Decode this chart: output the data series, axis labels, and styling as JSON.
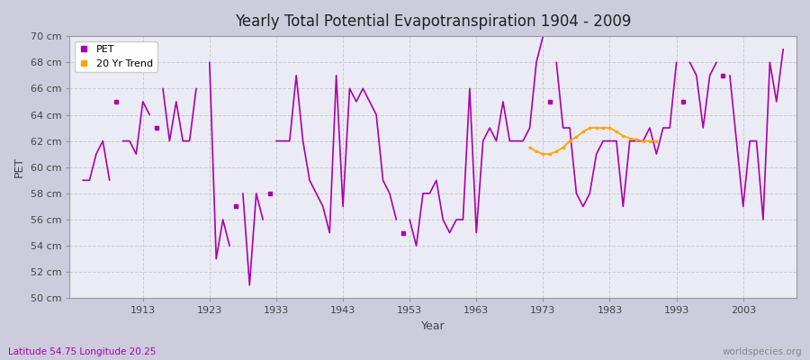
{
  "title": "Yearly Total Potential Evapotranspiration 1904 - 2009",
  "ylabel": "PET",
  "xlabel": "Year",
  "bottom_left_label": "Latitude 54.75 Longitude 20.25",
  "bottom_right_label": "worldspecies.org",
  "ylim": [
    50,
    70
  ],
  "ytick_labels": [
    "50 cm",
    "52 cm",
    "54 cm",
    "56 cm",
    "58 cm",
    "60 cm",
    "62 cm",
    "64 cm",
    "66 cm",
    "68 cm",
    "70 cm"
  ],
  "ytick_values": [
    50,
    52,
    54,
    56,
    58,
    60,
    62,
    64,
    66,
    68,
    70
  ],
  "xtick_values": [
    1913,
    1923,
    1933,
    1943,
    1953,
    1963,
    1973,
    1983,
    1993,
    2003
  ],
  "pet_color": "#AA00AA",
  "trend_color": "#FFA500",
  "fig_bg_color": "#CCCCDD",
  "plot_bg_color": "#EBEBF5",
  "segments": [
    {
      "years": [
        1904,
        1905,
        1906,
        1907,
        1908
      ],
      "pet": [
        59,
        59,
        61,
        62,
        59
      ]
    },
    {
      "years": [
        1910,
        1911,
        1912,
        1913,
        1914
      ],
      "pet": [
        62,
        62,
        61,
        65,
        64
      ]
    },
    {
      "years": [
        1916,
        1917,
        1918,
        1919,
        1920,
        1921
      ],
      "pet": [
        66,
        62,
        65,
        62,
        62,
        66
      ]
    },
    {
      "years": [
        1923,
        1924,
        1925,
        1926
      ],
      "pet": [
        68,
        53,
        56,
        54
      ]
    },
    {
      "years": [
        1928,
        1929,
        1930,
        1931
      ],
      "pet": [
        58,
        51,
        58,
        56
      ]
    },
    {
      "years": [
        1933,
        1934,
        1935,
        1936,
        1937,
        1938,
        1939,
        1940,
        1941,
        1942,
        1943,
        1944,
        1945,
        1946,
        1947,
        1948,
        1949,
        1950,
        1951
      ],
      "pet": [
        62,
        62,
        62,
        67,
        62,
        59,
        58,
        57,
        55,
        67,
        57,
        66,
        65,
        66,
        65,
        64,
        59,
        58,
        56
      ]
    },
    {
      "years": [
        1953,
        1954,
        1955,
        1956,
        1957,
        1958,
        1959,
        1960,
        1961,
        1962,
        1963,
        1964,
        1965,
        1966,
        1967,
        1968,
        1969,
        1970,
        1971,
        1972,
        1973
      ],
      "pet": [
        56,
        54,
        58,
        58,
        59,
        56,
        55,
        56,
        56,
        66,
        55,
        62,
        63,
        62,
        65,
        62,
        62,
        62,
        63,
        68,
        70
      ]
    },
    {
      "years": [
        1975,
        1976,
        1977,
        1978,
        1979,
        1980,
        1981,
        1982,
        1983,
        1984,
        1985,
        1986,
        1987,
        1988,
        1989,
        1990,
        1991,
        1992,
        1993
      ],
      "pet": [
        68,
        63,
        63,
        58,
        57,
        58,
        61,
        62,
        62,
        62,
        57,
        62,
        62,
        62,
        63,
        61,
        63,
        63,
        68
      ]
    },
    {
      "years": [
        1995,
        1996,
        1997,
        1998,
        1999
      ],
      "pet": [
        68,
        67,
        63,
        67,
        68
      ]
    },
    {
      "years": [
        2001,
        2002,
        2003,
        2004,
        2005,
        2006,
        2007,
        2008,
        2009
      ],
      "pet": [
        67,
        62,
        57,
        62,
        62,
        56,
        68,
        65,
        69
      ]
    }
  ],
  "isolated_points": [
    {
      "year": 1909,
      "pet": 65
    },
    {
      "year": 1915,
      "pet": 63
    },
    {
      "year": 1927,
      "pet": 57
    },
    {
      "year": 1932,
      "pet": 58
    },
    {
      "year": 1952,
      "pet": 55
    },
    {
      "year": 1974,
      "pet": 65
    },
    {
      "year": 1994,
      "pet": 65
    },
    {
      "year": 2000,
      "pet": 67
    }
  ],
  "trend_years": [
    1971,
    1972,
    1973,
    1974,
    1975,
    1976,
    1977,
    1978,
    1979,
    1980,
    1981,
    1982,
    1983,
    1984,
    1985,
    1986,
    1987,
    1988,
    1989,
    1990
  ],
  "trend": [
    61.5,
    61.2,
    61.0,
    61.0,
    61.2,
    61.5,
    62.0,
    62.3,
    62.7,
    63.0,
    63.0,
    63.0,
    63.0,
    62.7,
    62.4,
    62.2,
    62.1,
    62.0,
    62.0,
    62.0
  ]
}
